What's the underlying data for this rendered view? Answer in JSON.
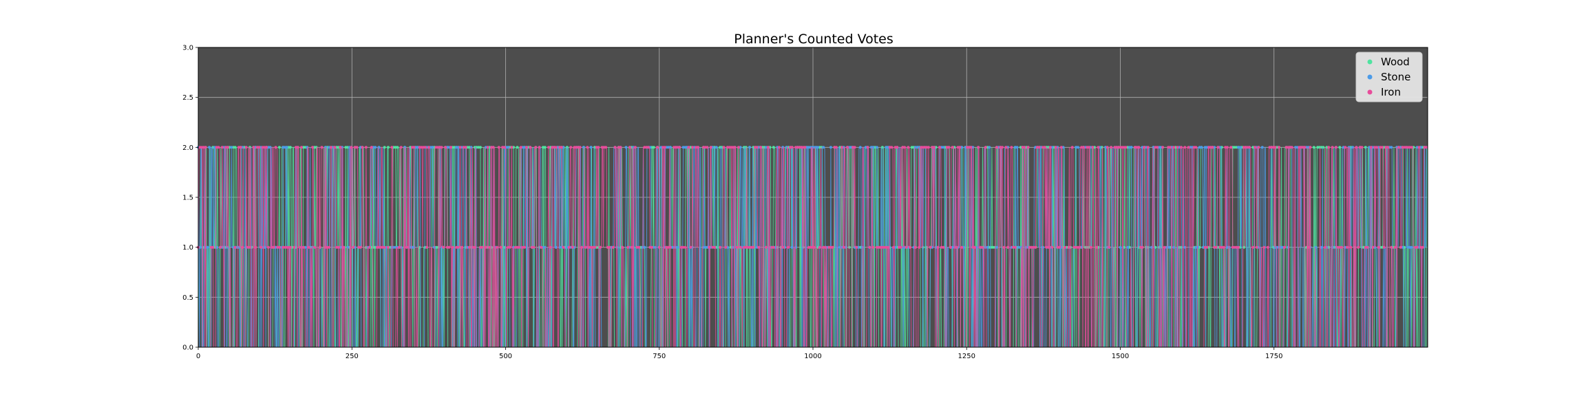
{
  "chart_data": {
    "type": "line",
    "title": "Planner's Counted Votes",
    "xlabel": "",
    "ylabel": "",
    "xlim": [
      0,
      2000
    ],
    "ylim": [
      0.0,
      3.0
    ],
    "x_ticks": [
      0,
      250,
      500,
      750,
      1000,
      1250,
      1500,
      1750
    ],
    "x_tick_labels": [
      "0",
      "250",
      "500",
      "750",
      "1000",
      "1250",
      "1500",
      "1750"
    ],
    "y_ticks": [
      0.0,
      0.5,
      1.0,
      1.5,
      2.0,
      2.5,
      3.0
    ],
    "y_tick_labels": [
      "0.0",
      "0.5",
      "1.0",
      "1.5",
      "2.0",
      "2.5",
      "3.0"
    ],
    "grid": true,
    "legend_position": "top-right",
    "background_color": "#4d4d4d",
    "series_description": "Each timestep, the three series take integer counts 0, 1 or 2 (rapidly switching step lines with circle markers), over timesteps 0 to 1999.",
    "series": [
      {
        "name": "Wood",
        "color": "#4fe3a0",
        "values_domain": [
          0,
          1,
          2
        ]
      },
      {
        "name": "Stone",
        "color": "#4c9be8",
        "values_domain": [
          0,
          1,
          2
        ]
      },
      {
        "name": "Iron",
        "color": "#e84c9b",
        "values_domain": [
          0,
          1,
          2
        ]
      }
    ],
    "n_points": 2000
  }
}
